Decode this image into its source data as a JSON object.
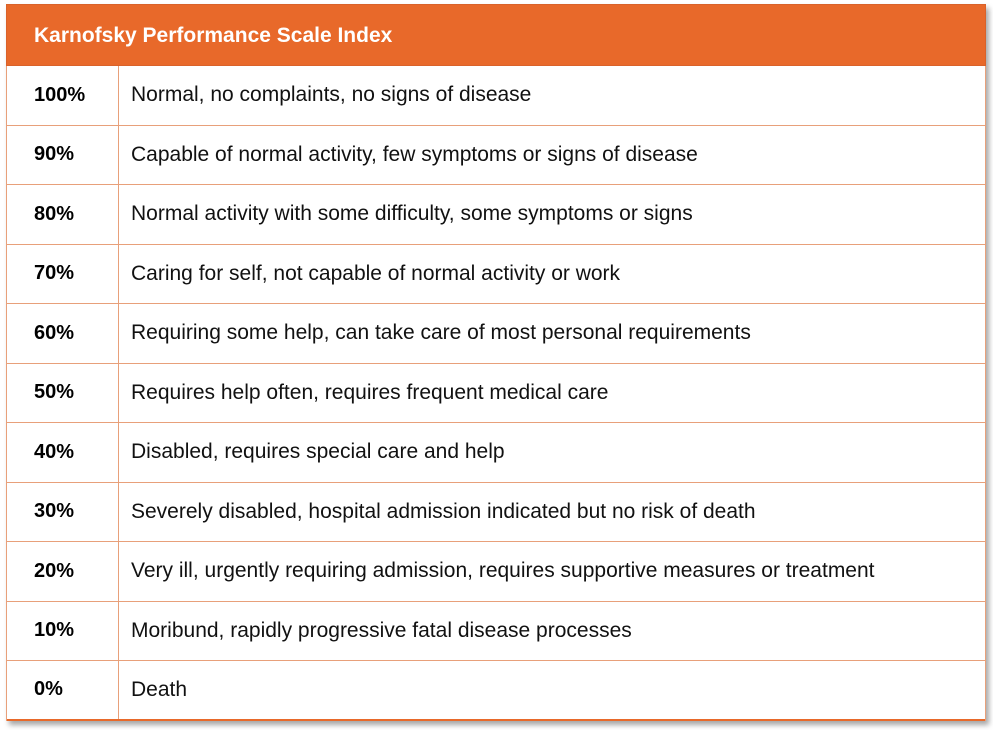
{
  "title": "Karnofsky Performance Scale Index",
  "rows": [
    {
      "score": "100%",
      "description": "Normal, no complaints, no signs of disease"
    },
    {
      "score": "90%",
      "description": "Capable of normal activity, few symptoms or signs of disease"
    },
    {
      "score": "80%",
      "description": "Normal activity with some difficulty, some symptoms or signs"
    },
    {
      "score": "70%",
      "description": "Caring for self, not capable of normal activity or work"
    },
    {
      "score": "60%",
      "description": "Requiring some help, can take care of most personal requirements"
    },
    {
      "score": "50%",
      "description": "Requires help often, requires frequent medical care"
    },
    {
      "score": "40%",
      "description": "Disabled, requires special care and help"
    },
    {
      "score": "30%",
      "description": "Severely disabled, hospital admission indicated but no risk of death"
    },
    {
      "score": "20%",
      "description": "Very ill, urgently requiring admission, requires supportive measures or treatment"
    },
    {
      "score": "10%",
      "description": "Moribund, rapidly progressive fatal disease processes"
    },
    {
      "score": "0%",
      "description": "Death"
    }
  ],
  "colors": {
    "header": "#E8692A",
    "border": "#E8A07A"
  }
}
